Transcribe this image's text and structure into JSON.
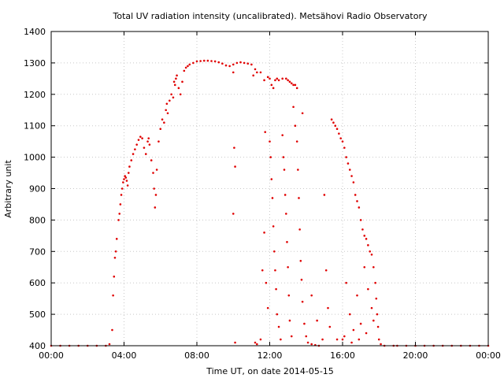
{
  "chart_data": {
    "type": "scatter",
    "title": "Total UV radiation intensity (uncalibrated). Metsähovi Radio Observatory",
    "xlabel": "Time UT, on date 2014-05-15",
    "ylabel": "Arbitrary unit",
    "xlim": [
      0,
      24
    ],
    "ylim": [
      400,
      1400
    ],
    "grid": true,
    "x_ticks": [
      {
        "value": 0,
        "label": "00:00"
      },
      {
        "value": 4,
        "label": "04:00"
      },
      {
        "value": 8,
        "label": "08:00"
      },
      {
        "value": 12,
        "label": "12:00"
      },
      {
        "value": 16,
        "label": "16:00"
      },
      {
        "value": 20,
        "label": "20:00"
      },
      {
        "value": 24,
        "label": "00:00"
      }
    ],
    "y_ticks": [
      {
        "value": 400,
        "label": "400"
      },
      {
        "value": 500,
        "label": "500"
      },
      {
        "value": 600,
        "label": "600"
      },
      {
        "value": 700,
        "label": "700"
      },
      {
        "value": 800,
        "label": "800"
      },
      {
        "value": 900,
        "label": "900"
      },
      {
        "value": 1000,
        "label": "1000"
      },
      {
        "value": 1100,
        "label": "1100"
      },
      {
        "value": 1200,
        "label": "1200"
      },
      {
        "value": 1300,
        "label": "1300"
      },
      {
        "value": 1400,
        "label": "1400"
      }
    ],
    "series": [
      {
        "color": "#e00000",
        "points": [
          [
            0.0,
            400
          ],
          [
            0.5,
            400
          ],
          [
            1.0,
            400
          ],
          [
            1.5,
            400
          ],
          [
            2.0,
            400
          ],
          [
            2.5,
            400
          ],
          [
            3.0,
            400
          ],
          [
            3.2,
            405
          ],
          [
            3.35,
            450
          ],
          [
            3.4,
            560
          ],
          [
            3.45,
            620
          ],
          [
            3.5,
            680
          ],
          [
            3.55,
            700
          ],
          [
            3.6,
            740
          ],
          [
            3.7,
            800
          ],
          [
            3.75,
            820
          ],
          [
            3.8,
            850
          ],
          [
            3.85,
            880
          ],
          [
            3.9,
            900
          ],
          [
            3.95,
            920
          ],
          [
            4.0,
            930
          ],
          [
            4.05,
            940
          ],
          [
            4.1,
            935
          ],
          [
            4.15,
            925
          ],
          [
            4.2,
            910
          ],
          [
            4.25,
            950
          ],
          [
            4.3,
            970
          ],
          [
            4.4,
            990
          ],
          [
            4.5,
            1010
          ],
          [
            4.6,
            1025
          ],
          [
            4.7,
            1040
          ],
          [
            4.8,
            1055
          ],
          [
            4.9,
            1065
          ],
          [
            5.0,
            1060
          ],
          [
            5.1,
            1030
          ],
          [
            5.2,
            1010
          ],
          [
            5.3,
            1050
          ],
          [
            5.35,
            1060
          ],
          [
            5.4,
            1040
          ],
          [
            5.5,
            990
          ],
          [
            5.6,
            950
          ],
          [
            5.65,
            900
          ],
          [
            5.7,
            840
          ],
          [
            5.75,
            880
          ],
          [
            5.8,
            960
          ],
          [
            5.9,
            1050
          ],
          [
            6.0,
            1090
          ],
          [
            6.1,
            1120
          ],
          [
            6.2,
            1110
          ],
          [
            6.3,
            1150
          ],
          [
            6.35,
            1170
          ],
          [
            6.4,
            1140
          ],
          [
            6.5,
            1180
          ],
          [
            6.6,
            1200
          ],
          [
            6.7,
            1190
          ],
          [
            6.75,
            1240
          ],
          [
            6.8,
            1230
          ],
          [
            6.85,
            1250
          ],
          [
            6.9,
            1260
          ],
          [
            7.0,
            1220
          ],
          [
            7.1,
            1200
          ],
          [
            7.2,
            1240
          ],
          [
            7.3,
            1275
          ],
          [
            7.4,
            1285
          ],
          [
            7.5,
            1290
          ],
          [
            7.6,
            1295
          ],
          [
            7.8,
            1300
          ],
          [
            8.0,
            1305
          ],
          [
            8.2,
            1306
          ],
          [
            8.4,
            1307
          ],
          [
            8.6,
            1307
          ],
          [
            8.8,
            1306
          ],
          [
            9.0,
            1305
          ],
          [
            9.2,
            1302
          ],
          [
            9.4,
            1298
          ],
          [
            9.6,
            1292
          ],
          [
            9.8,
            1290
          ],
          [
            10.0,
            1295
          ],
          [
            10.2,
            1300
          ],
          [
            10.4,
            1302
          ],
          [
            10.6,
            1300
          ],
          [
            10.8,
            1298
          ],
          [
            11.0,
            1295
          ],
          [
            11.1,
            1260
          ],
          [
            11.2,
            1280
          ],
          [
            11.3,
            1270
          ],
          [
            11.5,
            1270
          ],
          [
            11.7,
            1245
          ],
          [
            11.9,
            1255
          ],
          [
            12.0,
            1250
          ],
          [
            12.1,
            1230
          ],
          [
            12.2,
            1220
          ],
          [
            12.3,
            1245
          ],
          [
            12.4,
            1250
          ],
          [
            12.5,
            1245
          ],
          [
            12.7,
            1250
          ],
          [
            12.9,
            1250
          ],
          [
            13.0,
            1245
          ],
          [
            13.1,
            1240
          ],
          [
            13.2,
            1235
          ],
          [
            13.3,
            1230
          ],
          [
            13.4,
            1230
          ],
          [
            13.5,
            1220
          ],
          [
            10.0,
            1270
          ],
          [
            10.05,
            1030
          ],
          [
            10.1,
            970
          ],
          [
            10.0,
            820
          ],
          [
            10.1,
            410
          ],
          [
            11.2,
            410
          ],
          [
            11.3,
            405
          ],
          [
            11.5,
            420
          ],
          [
            11.6,
            640
          ],
          [
            11.7,
            760
          ],
          [
            11.75,
            1080
          ],
          [
            11.8,
            600
          ],
          [
            11.9,
            520
          ],
          [
            12.0,
            1050
          ],
          [
            12.05,
            1000
          ],
          [
            12.1,
            930
          ],
          [
            12.15,
            870
          ],
          [
            12.2,
            780
          ],
          [
            12.25,
            700
          ],
          [
            12.3,
            640
          ],
          [
            12.35,
            580
          ],
          [
            12.4,
            500
          ],
          [
            12.5,
            460
          ],
          [
            12.6,
            420
          ],
          [
            12.7,
            1070
          ],
          [
            12.75,
            1000
          ],
          [
            12.8,
            960
          ],
          [
            12.85,
            880
          ],
          [
            12.9,
            820
          ],
          [
            12.95,
            730
          ],
          [
            13.0,
            650
          ],
          [
            13.05,
            560
          ],
          [
            13.1,
            480
          ],
          [
            13.2,
            430
          ],
          [
            13.3,
            1160
          ],
          [
            13.4,
            1100
          ],
          [
            13.5,
            1050
          ],
          [
            13.55,
            960
          ],
          [
            13.6,
            870
          ],
          [
            13.65,
            770
          ],
          [
            13.7,
            670
          ],
          [
            13.75,
            610
          ],
          [
            13.8,
            540
          ],
          [
            13.9,
            470
          ],
          [
            14.0,
            430
          ],
          [
            14.1,
            410
          ],
          [
            14.3,
            405
          ],
          [
            14.5,
            402
          ],
          [
            14.7,
            400
          ],
          [
            13.8,
            1140
          ],
          [
            14.3,
            560
          ],
          [
            14.6,
            480
          ],
          [
            14.9,
            420
          ],
          [
            15.0,
            880
          ],
          [
            15.1,
            640
          ],
          [
            15.2,
            520
          ],
          [
            15.3,
            460
          ],
          [
            15.4,
            1120
          ],
          [
            15.5,
            1110
          ],
          [
            15.6,
            1100
          ],
          [
            15.7,
            1090
          ],
          [
            15.8,
            1075
          ],
          [
            15.9,
            1060
          ],
          [
            16.0,
            1050
          ],
          [
            16.1,
            1030
          ],
          [
            16.2,
            1000
          ],
          [
            16.3,
            980
          ],
          [
            16.4,
            960
          ],
          [
            16.5,
            940
          ],
          [
            16.6,
            920
          ],
          [
            16.7,
            880
          ],
          [
            16.8,
            860
          ],
          [
            16.9,
            840
          ],
          [
            17.0,
            800
          ],
          [
            17.1,
            770
          ],
          [
            17.2,
            750
          ],
          [
            17.3,
            740
          ],
          [
            17.4,
            720
          ],
          [
            17.5,
            700
          ],
          [
            17.6,
            690
          ],
          [
            17.7,
            650
          ],
          [
            17.8,
            600
          ],
          [
            17.85,
            550
          ],
          [
            17.9,
            500
          ],
          [
            17.95,
            460
          ],
          [
            18.0,
            420
          ],
          [
            18.1,
            405
          ],
          [
            18.3,
            400
          ],
          [
            18.8,
            400
          ],
          [
            16.0,
            420
          ],
          [
            16.2,
            600
          ],
          [
            16.4,
            500
          ],
          [
            16.6,
            450
          ],
          [
            16.8,
            560
          ],
          [
            17.0,
            470
          ],
          [
            17.2,
            650
          ],
          [
            17.4,
            580
          ],
          [
            17.6,
            520
          ],
          [
            17.7,
            480
          ],
          [
            15.7,
            420
          ],
          [
            16.1,
            430
          ],
          [
            16.5,
            410
          ],
          [
            16.9,
            420
          ],
          [
            17.3,
            440
          ],
          [
            19.0,
            400
          ],
          [
            19.5,
            400
          ],
          [
            20.0,
            400
          ],
          [
            20.5,
            400
          ],
          [
            21.0,
            400
          ],
          [
            21.5,
            400
          ],
          [
            22.0,
            400
          ],
          [
            22.5,
            400
          ],
          [
            23.0,
            400
          ],
          [
            23.5,
            400
          ],
          [
            24.0,
            400
          ]
        ]
      }
    ]
  }
}
